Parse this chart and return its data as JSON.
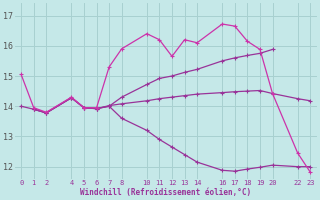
{
  "bg_color": "#c5e8e8",
  "grid_color": "#a8d0d0",
  "line_color1": "#cc33aa",
  "line_color2": "#993399",
  "line_color3": "#993399",
  "line_color4": "#993399",
  "xlabel": "Windchill (Refroidissement éolien,°C)",
  "xlim": [
    -0.5,
    23.5
  ],
  "ylim": [
    11.6,
    17.4
  ],
  "xticks": [
    0,
    1,
    2,
    4,
    5,
    6,
    7,
    8,
    10,
    11,
    12,
    13,
    14,
    16,
    17,
    18,
    19,
    20,
    22,
    23
  ],
  "yticks": [
    12,
    13,
    14,
    15,
    16,
    17
  ],
  "series1_x": [
    0,
    1,
    2,
    4,
    5,
    6,
    7,
    8,
    10,
    11,
    12,
    13,
    14,
    16,
    17,
    18,
    19,
    20,
    22,
    23
  ],
  "series1_y": [
    15.05,
    13.95,
    13.8,
    14.3,
    13.95,
    13.95,
    15.3,
    15.9,
    16.4,
    16.2,
    15.65,
    16.2,
    16.1,
    16.72,
    16.65,
    16.15,
    15.88,
    14.42,
    12.45,
    11.82
  ],
  "series2_x": [
    0,
    1,
    2,
    4,
    5,
    6,
    7,
    8,
    10,
    11,
    12,
    13,
    14,
    16,
    17,
    18,
    19,
    20
  ],
  "series2_y": [
    14.0,
    13.9,
    13.78,
    14.28,
    13.95,
    13.92,
    14.0,
    14.3,
    14.72,
    14.92,
    15.0,
    15.12,
    15.22,
    15.5,
    15.6,
    15.68,
    15.75,
    15.88
  ],
  "series3_x": [
    1,
    2,
    4,
    5,
    6,
    7,
    8,
    10,
    11,
    12,
    13,
    14,
    16,
    17,
    18,
    19,
    20,
    22,
    23
  ],
  "series3_y": [
    13.9,
    13.78,
    14.28,
    13.95,
    13.92,
    14.0,
    13.6,
    13.2,
    12.9,
    12.65,
    12.4,
    12.15,
    11.88,
    11.85,
    11.92,
    11.98,
    12.05,
    12.0,
    12.0
  ],
  "series4_x": [
    1,
    2,
    4,
    5,
    6,
    7,
    8,
    10,
    11,
    12,
    13,
    14,
    16,
    17,
    18,
    19,
    20,
    22,
    23
  ],
  "series4_y": [
    13.9,
    13.78,
    14.28,
    13.95,
    13.92,
    14.02,
    14.08,
    14.18,
    14.25,
    14.3,
    14.35,
    14.4,
    14.45,
    14.48,
    14.5,
    14.52,
    14.42,
    14.25,
    14.18
  ]
}
